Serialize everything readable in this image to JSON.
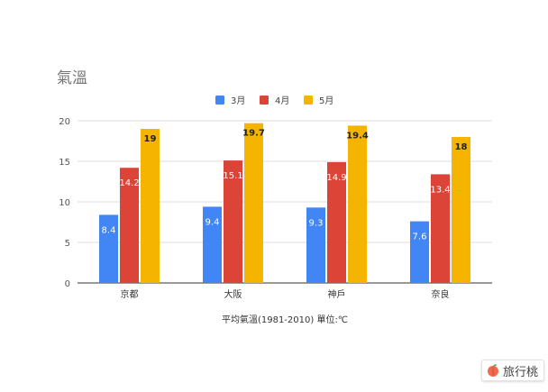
{
  "chart_data": {
    "type": "bar",
    "title": "氣溫",
    "xlabel": "平均氣溫(1981-2010) 單位:℃",
    "ylabel": "",
    "categories": [
      "京都",
      "大阪",
      "神戶",
      "奈良"
    ],
    "series": [
      {
        "name": "3月",
        "values": [
          8.4,
          9.4,
          9.3,
          7.6
        ],
        "labels": [
          "8.4",
          "9.4",
          "9.3",
          "7.6"
        ],
        "color": "#4285f4",
        "label_style": "light"
      },
      {
        "name": "4月",
        "values": [
          14.2,
          15.1,
          14.9,
          13.4
        ],
        "labels": [
          "14.2",
          "15.1",
          "14.9",
          "13.4"
        ],
        "color": "#db4437",
        "label_style": "light"
      },
      {
        "name": "5月",
        "values": [
          19,
          19.7,
          19.4,
          18
        ],
        "labels": [
          "19",
          "19.7",
          "19.4",
          "18"
        ],
        "color": "#f4b400",
        "label_style": "dark"
      }
    ],
    "ylim": [
      0,
      20
    ],
    "yticks": [
      "0",
      "5",
      "10",
      "15",
      "20"
    ],
    "grid": true,
    "legend_position": "top"
  },
  "watermark": {
    "text": "旅行桃",
    "icon": "peach-icon"
  }
}
